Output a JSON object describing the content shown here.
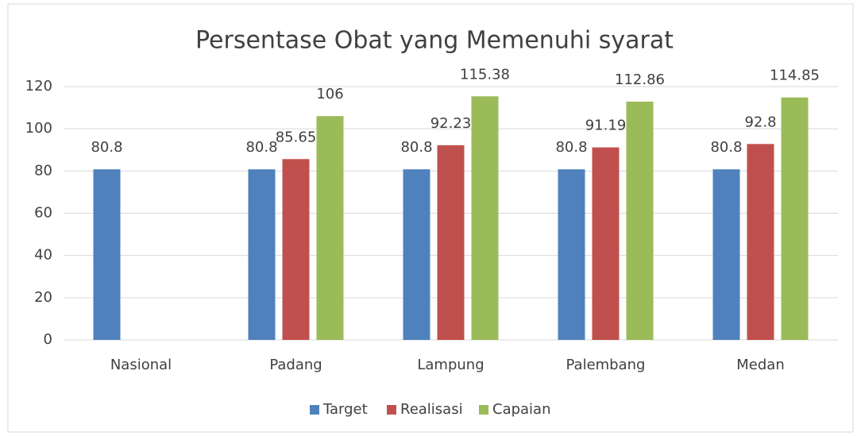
{
  "chart_data": {
    "type": "bar",
    "title": "Persentase Obat yang Memenuhi syarat",
    "categories": [
      "Nasional",
      "Padang",
      "Lampung",
      "Palembang",
      "Medan"
    ],
    "series": [
      {
        "name": "Target",
        "color": "#4f81bd",
        "values": [
          80.8,
          80.8,
          80.8,
          80.8,
          80.8
        ]
      },
      {
        "name": "Realisasi",
        "color": "#c0504d",
        "values": [
          null,
          85.65,
          92.23,
          91.19,
          92.8
        ]
      },
      {
        "name": "Capaian",
        "color": "#9bbb59",
        "values": [
          null,
          106,
          115.38,
          112.86,
          114.85
        ]
      }
    ],
    "ylim": [
      0,
      120
    ],
    "yticks": [
      0,
      20,
      40,
      60,
      80,
      100,
      120
    ],
    "grid": true,
    "legend": "bottom"
  }
}
